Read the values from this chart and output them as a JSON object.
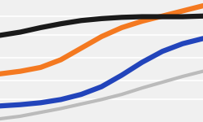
{
  "x": [
    0,
    1,
    2,
    3,
    4,
    5,
    6,
    7,
    8,
    9,
    10
  ],
  "lines": {
    "black": [
      70,
      75,
      82,
      88,
      93,
      96,
      98,
      99,
      99,
      99,
      100
    ],
    "orange": [
      10,
      14,
      20,
      32,
      50,
      68,
      82,
      92,
      100,
      108,
      116
    ],
    "blue": [
      -40,
      -38,
      -35,
      -30,
      -22,
      -10,
      8,
      28,
      45,
      57,
      65
    ],
    "gray": [
      -60,
      -56,
      -50,
      -44,
      -37,
      -30,
      -22,
      -12,
      -3,
      6,
      14
    ]
  },
  "line_colors": {
    "black": "#1a1a1a",
    "orange": "#f47920",
    "blue": "#2244bb",
    "gray": "#bbbbbb"
  },
  "line_widths": {
    "black": 4.5,
    "orange": 4.5,
    "blue": 4.5,
    "gray": 3.0
  },
  "background_color": "#f0f0f0",
  "grid_color": "#ffffff",
  "grid_y_vals": [
    -30,
    0,
    35,
    70,
    100
  ],
  "ylim": [
    -65,
    125
  ],
  "xlim": [
    0,
    10
  ]
}
